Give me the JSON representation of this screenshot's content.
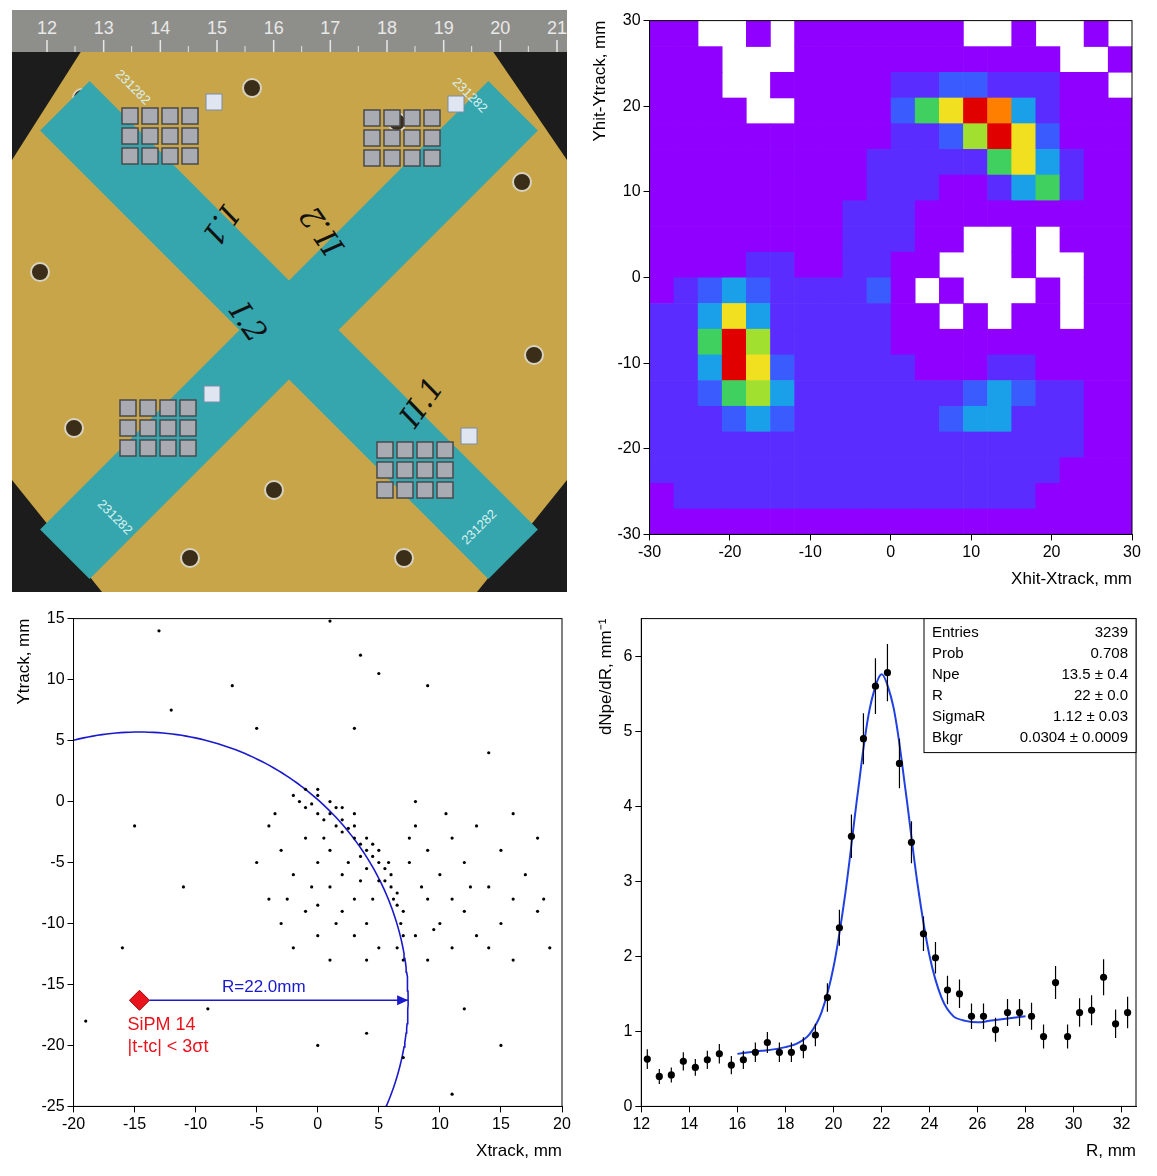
{
  "photo": {
    "ruler": [
      12,
      13,
      14,
      15,
      16,
      17,
      18,
      19,
      20,
      21
    ],
    "labels": [
      "I.1",
      "II.2",
      "I.2",
      "II.1"
    ],
    "serial": "231282"
  },
  "chart_data": [
    {
      "type": "heatmap",
      "x_label": "Xhit-Xtrack, mm",
      "y_label": "Yhit-Ytrack, mm",
      "xlim": [
        -30,
        30
      ],
      "xticks": [
        -30,
        -20,
        -10,
        0,
        10,
        20,
        30
      ],
      "ylim": [
        -30,
        30
      ],
      "yticks": [
        -30,
        -20,
        -10,
        0,
        10,
        20,
        30
      ],
      "x": [
        -28.5,
        -25.5,
        -22.5,
        -19.5,
        -16.5,
        -13.5,
        -10.5,
        -7.5,
        -4.5,
        -1.5,
        1.5,
        4.5,
        7.5,
        10.5,
        13.5,
        16.5,
        19.5,
        22.5,
        25.5,
        28.5
      ],
      "y": [
        28.5,
        25.5,
        22.5,
        19.5,
        16.5,
        13.5,
        10.5,
        7.5,
        4.5,
        1.5,
        -1.5,
        -4.5,
        -7.5,
        -10.5,
        -13.5,
        -16.5,
        -19.5,
        -22.5,
        -25.5,
        -28.5
      ],
      "z": [
        [
          1,
          1,
          0,
          0,
          1,
          0,
          1,
          1,
          1,
          1,
          1,
          1,
          1,
          0,
          0,
          1,
          0,
          0,
          1,
          0
        ],
        [
          1,
          1,
          1,
          0,
          0,
          0,
          1,
          1,
          1,
          1,
          1,
          1,
          1,
          1,
          1,
          1,
          1,
          0,
          0,
          1
        ],
        [
          1,
          1,
          1,
          0,
          0,
          1,
          1,
          1,
          1,
          1,
          2,
          2,
          3,
          3,
          2,
          2,
          2,
          1,
          1,
          0
        ],
        [
          1,
          1,
          1,
          1,
          0,
          0,
          1,
          1,
          1,
          1,
          3,
          5,
          7,
          9,
          8,
          4,
          2,
          1,
          1,
          1
        ],
        [
          1,
          1,
          1,
          1,
          1,
          1,
          1,
          1,
          1,
          1,
          2,
          2,
          3,
          6,
          9,
          7,
          3,
          1,
          1,
          1
        ],
        [
          1,
          1,
          1,
          1,
          1,
          1,
          1,
          1,
          1,
          2,
          2,
          2,
          2,
          2,
          5,
          7,
          4,
          2,
          1,
          1
        ],
        [
          1,
          1,
          1,
          1,
          1,
          1,
          1,
          1,
          1,
          2,
          2,
          2,
          1,
          1,
          2,
          4,
          5,
          2,
          1,
          1
        ],
        [
          1,
          1,
          1,
          1,
          1,
          1,
          1,
          1,
          2,
          2,
          2,
          1,
          1,
          1,
          1,
          1,
          1,
          1,
          1,
          1
        ],
        [
          1,
          1,
          1,
          1,
          1,
          1,
          1,
          1,
          2,
          2,
          2,
          1,
          1,
          0,
          0,
          1,
          0,
          1,
          1,
          1
        ],
        [
          1,
          1,
          1,
          1,
          2,
          2,
          1,
          1,
          2,
          2,
          1,
          1,
          0,
          0,
          0,
          1,
          0,
          0,
          1,
          1
        ],
        [
          1,
          2,
          3,
          4,
          3,
          2,
          2,
          2,
          2,
          3,
          1,
          0,
          1,
          0,
          0,
          0,
          1,
          0,
          1,
          1
        ],
        [
          2,
          2,
          4,
          7,
          4,
          2,
          2,
          2,
          2,
          2,
          1,
          1,
          0,
          1,
          0,
          1,
          1,
          0,
          1,
          1
        ],
        [
          2,
          2,
          5,
          9,
          6,
          2,
          2,
          2,
          2,
          2,
          1,
          1,
          1,
          1,
          1,
          1,
          1,
          1,
          1,
          1
        ],
        [
          2,
          2,
          4,
          9,
          7,
          3,
          2,
          2,
          2,
          2,
          2,
          1,
          1,
          1,
          2,
          2,
          1,
          1,
          1,
          1
        ],
        [
          2,
          2,
          3,
          5,
          6,
          4,
          2,
          2,
          2,
          2,
          2,
          2,
          2,
          3,
          4,
          3,
          2,
          2,
          1,
          1
        ],
        [
          2,
          2,
          2,
          3,
          4,
          3,
          2,
          2,
          2,
          2,
          2,
          2,
          3,
          4,
          4,
          2,
          2,
          2,
          1,
          1
        ],
        [
          2,
          2,
          2,
          2,
          2,
          2,
          2,
          2,
          2,
          2,
          2,
          2,
          2,
          2,
          2,
          2,
          2,
          2,
          1,
          1
        ],
        [
          2,
          2,
          2,
          2,
          2,
          2,
          2,
          2,
          2,
          2,
          2,
          2,
          2,
          2,
          2,
          2,
          2,
          1,
          1,
          1
        ],
        [
          1,
          2,
          2,
          2,
          2,
          2,
          2,
          2,
          2,
          2,
          2,
          2,
          2,
          2,
          2,
          2,
          1,
          1,
          1,
          1
        ],
        [
          1,
          1,
          1,
          1,
          1,
          1,
          1,
          1,
          1,
          1,
          1,
          1,
          1,
          1,
          1,
          1,
          1,
          1,
          1,
          1
        ]
      ]
    },
    {
      "type": "scatter",
      "x_label": "Xtrack, mm",
      "y_label": "Ytrack, mm",
      "xlim": [
        -20,
        20
      ],
      "xticks": [
        -20,
        -15,
        -10,
        -5,
        0,
        5,
        10,
        15,
        20
      ],
      "ylim": [
        -25,
        15
      ],
      "yticks": [
        -25,
        -20,
        -15,
        -10,
        -5,
        0,
        5,
        10,
        15
      ],
      "color": "#000000",
      "marker": "circle",
      "points": [
        [
          -2,
          0.5
        ],
        [
          -1.5,
          0
        ],
        [
          -1,
          -0.5
        ],
        [
          -0.5,
          -0.2
        ],
        [
          0,
          -1
        ],
        [
          0.5,
          -1.5
        ],
        [
          1,
          -1
        ],
        [
          1.5,
          -2
        ],
        [
          2,
          -2.5
        ],
        [
          2.5,
          -2.2
        ],
        [
          3,
          -3
        ],
        [
          3.5,
          -3.5
        ],
        [
          4,
          -4
        ],
        [
          4,
          -3
        ],
        [
          4.5,
          -4.5
        ],
        [
          5,
          -5
        ],
        [
          5,
          -4
        ],
        [
          5.5,
          -5.5
        ],
        [
          5.5,
          -6.5
        ],
        [
          6,
          -6
        ],
        [
          6,
          -7
        ],
        [
          6.5,
          -7.5
        ],
        [
          6.5,
          -8.5
        ],
        [
          7,
          -9
        ],
        [
          6.8,
          -10
        ],
        [
          7,
          -11
        ],
        [
          6.5,
          -12
        ],
        [
          7,
          -13
        ],
        [
          3,
          -2
        ],
        [
          2,
          -1.5
        ],
        [
          4.5,
          -3.5
        ],
        [
          5.8,
          -5
        ],
        [
          6.2,
          -8
        ],
        [
          5,
          -6.5
        ],
        [
          4,
          -5.5
        ],
        [
          3.5,
          -4.5
        ],
        [
          -4,
          -2
        ],
        [
          -3,
          -4
        ],
        [
          -2,
          -6
        ],
        [
          -4,
          -8
        ],
        [
          -3,
          -10
        ],
        [
          -1,
          -3
        ],
        [
          0,
          -5
        ],
        [
          1,
          -7
        ],
        [
          2,
          -9
        ],
        [
          -1,
          -9
        ],
        [
          0,
          -11
        ],
        [
          1,
          -4
        ],
        [
          2,
          -6
        ],
        [
          3,
          -8
        ],
        [
          3,
          -11
        ],
        [
          4,
          -10
        ],
        [
          5,
          -12
        ],
        [
          -2,
          -12
        ],
        [
          1,
          -13
        ],
        [
          4,
          -13
        ],
        [
          -5,
          -5
        ],
        [
          -3.5,
          -1
        ],
        [
          0.5,
          -3
        ],
        [
          2.5,
          -5
        ],
        [
          -0.5,
          -7
        ],
        [
          1.5,
          -10
        ],
        [
          3.5,
          -6.5
        ],
        [
          4.5,
          -8
        ],
        [
          -2.5,
          -8
        ],
        [
          0,
          -8.5
        ],
        [
          8,
          -2
        ],
        [
          9,
          -4
        ],
        [
          10,
          -6
        ],
        [
          11,
          -3
        ],
        [
          12,
          -5
        ],
        [
          9,
          -8
        ],
        [
          10,
          -10
        ],
        [
          12,
          -9
        ],
        [
          14,
          -7
        ],
        [
          13,
          -11
        ],
        [
          15,
          -4
        ],
        [
          16,
          -8
        ],
        [
          8,
          -11
        ],
        [
          9,
          -13
        ],
        [
          11,
          -12
        ],
        [
          17,
          -6
        ],
        [
          18,
          -3
        ],
        [
          7.5,
          -5
        ],
        [
          8.5,
          -7
        ],
        [
          10.5,
          -1
        ],
        [
          8,
          0
        ],
        [
          13,
          -2
        ],
        [
          15,
          -10
        ],
        [
          11,
          -8
        ],
        [
          9.5,
          -10.5
        ],
        [
          7.5,
          -3
        ],
        [
          12.5,
          -7
        ],
        [
          14,
          -12
        ],
        [
          16,
          -1
        ],
        [
          18,
          -9
        ],
        [
          0,
          1
        ],
        [
          1,
          0
        ],
        [
          2,
          -0.5
        ],
        [
          3,
          -1
        ],
        [
          0,
          0.5
        ],
        [
          -1,
          1
        ],
        [
          1.5,
          -0.5
        ],
        [
          -13,
          14
        ],
        [
          -7,
          9.5
        ],
        [
          3.5,
          12
        ],
        [
          5,
          10.5
        ],
        [
          1,
          14.8
        ],
        [
          9,
          9.5
        ],
        [
          -12,
          7.5
        ],
        [
          -5,
          6
        ],
        [
          3,
          6
        ],
        [
          14,
          4
        ],
        [
          -15,
          -2
        ],
        [
          -11,
          -7
        ],
        [
          -16,
          -12
        ],
        [
          -19,
          -18
        ],
        [
          0,
          -20
        ],
        [
          4,
          -19
        ],
        [
          7,
          -21
        ],
        [
          12,
          -17
        ],
        [
          19,
          -12
        ],
        [
          18.5,
          -8
        ],
        [
          -9,
          -17
        ],
        [
          16,
          -13
        ],
        [
          15,
          -20
        ],
        [
          11,
          -24
        ]
      ],
      "marker_point": {
        "x": -14.6,
        "y": -16.3,
        "label": "SiPM 14",
        "sublabel": "|t-tc| < 3σt",
        "color": "#e8141e"
      },
      "circle": {
        "center": [
          -14.6,
          -16.3
        ],
        "r": 22.0,
        "label": "R=22.0mm",
        "color": "#1a1acc"
      }
    },
    {
      "type": "errorbar",
      "x_label": "R, mm",
      "y_label": "dNpe/dR, mm⁻¹",
      "xlim": [
        12,
        32.6
      ],
      "xticks": [
        12,
        14,
        16,
        18,
        20,
        22,
        24,
        26,
        28,
        30,
        32
      ],
      "ylim": [
        0,
        6.5
      ],
      "yticks": [
        0,
        1,
        2,
        3,
        4,
        5,
        6
      ],
      "color": "#000000",
      "marker": "circle",
      "x": [
        12.25,
        12.75,
        13.25,
        13.75,
        14.25,
        14.75,
        15.25,
        15.75,
        16.25,
        16.75,
        17.25,
        17.75,
        18.25,
        18.75,
        19.25,
        19.75,
        20.25,
        20.75,
        21.25,
        21.75,
        22.25,
        22.75,
        23.25,
        23.75,
        24.25,
        24.75,
        25.25,
        25.75,
        26.25,
        26.75,
        27.25,
        27.75,
        28.25,
        28.75,
        29.25,
        29.75,
        30.25,
        30.75,
        31.25,
        31.75,
        32.25
      ],
      "values": [
        0.63,
        0.4,
        0.42,
        0.6,
        0.52,
        0.62,
        0.7,
        0.55,
        0.62,
        0.72,
        0.85,
        0.72,
        0.72,
        0.78,
        0.95,
        1.45,
        2.38,
        3.6,
        4.9,
        5.6,
        5.78,
        4.57,
        3.52,
        2.3,
        1.98,
        1.55,
        1.5,
        1.2,
        1.2,
        1.02,
        1.25,
        1.25,
        1.2,
        0.93,
        1.65,
        0.93,
        1.25,
        1.28,
        1.72,
        1.1,
        1.25
      ],
      "errors": [
        0.13,
        0.1,
        0.1,
        0.12,
        0.11,
        0.12,
        0.13,
        0.12,
        0.12,
        0.13,
        0.14,
        0.13,
        0.13,
        0.14,
        0.15,
        0.19,
        0.24,
        0.29,
        0.34,
        0.37,
        0.38,
        0.33,
        0.28,
        0.23,
        0.21,
        0.19,
        0.19,
        0.17,
        0.17,
        0.16,
        0.18,
        0.18,
        0.18,
        0.16,
        0.22,
        0.16,
        0.19,
        0.2,
        0.24,
        0.19,
        0.21
      ],
      "fit": {
        "color": "#2040e0",
        "x": [
          16,
          16.5,
          17,
          17.5,
          18,
          18.5,
          19,
          19.5,
          20,
          20.5,
          21,
          21.5,
          22,
          22.5,
          23,
          23.5,
          24,
          24.5,
          25,
          25.5,
          26,
          26.5,
          27,
          27.5,
          28
        ],
        "y": [
          0.7,
          0.72,
          0.74,
          0.76,
          0.79,
          0.84,
          0.96,
          1.25,
          1.85,
          2.85,
          4.14,
          5.28,
          5.76,
          5.32,
          4.22,
          2.97,
          2.01,
          1.45,
          1.2,
          1.14,
          1.12,
          1.14,
          1.16,
          1.18,
          1.2
        ]
      },
      "stats": [
        [
          "Entries",
          "3239"
        ],
        [
          "Prob",
          "0.708"
        ],
        [
          "Npe",
          "13.5 ± 0.4"
        ],
        [
          "R",
          "22 ± 0.0"
        ],
        [
          "SigmaR",
          "1.12 ± 0.03"
        ],
        [
          "Bkgr",
          "0.0304 ± 0.0009"
        ]
      ]
    }
  ]
}
